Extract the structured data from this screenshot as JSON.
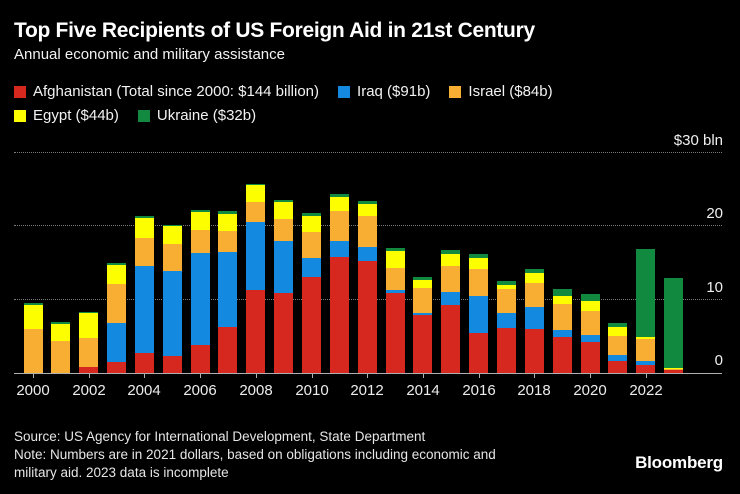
{
  "header": {
    "title": "Top Five Recipients of US Foreign Aid in 21st Century",
    "subtitle": "Annual economic and military assistance"
  },
  "legend": {
    "items": [
      {
        "key": "afghanistan",
        "label": "Afghanistan (Total since 2000: $144 billion)",
        "color": "#d6281e"
      },
      {
        "key": "iraq",
        "label": "Iraq ($91b)",
        "color": "#1389df"
      },
      {
        "key": "israel",
        "label": "Israel ($84b)",
        "color": "#f8ae33"
      },
      {
        "key": "egypt",
        "label": "Egypt ($44b)",
        "color": "#fdfe00"
      },
      {
        "key": "ukraine",
        "label": "Ukraine ($32b)",
        "color": "#118a3f"
      }
    ]
  },
  "chart_data": {
    "type": "bar",
    "stacked": true,
    "title": "Top Five Recipients of US Foreign Aid in 21st Century",
    "subtitle": "Annual economic and military assistance",
    "x": [
      2000,
      2001,
      2002,
      2003,
      2004,
      2005,
      2006,
      2007,
      2008,
      2009,
      2010,
      2011,
      2012,
      2013,
      2014,
      2015,
      2016,
      2017,
      2018,
      2019,
      2020,
      2021,
      2022,
      2023
    ],
    "series": [
      {
        "name": "Afghanistan",
        "key": "afghanistan",
        "color": "#d6281e",
        "values": [
          0,
          0,
          0.8,
          1.45,
          2.7,
          2.25,
          3.8,
          6.3,
          11.3,
          10.9,
          13.1,
          15.8,
          15.2,
          10.9,
          7.9,
          9.3,
          5.5,
          6.1,
          6.0,
          4.9,
          4.2,
          1.7,
          1.1,
          0.35
        ]
      },
      {
        "name": "Iraq",
        "key": "iraq",
        "color": "#1389df",
        "values": [
          0,
          0,
          0,
          5.4,
          11.9,
          11.6,
          12.5,
          10.1,
          9.2,
          7.0,
          2.6,
          2.2,
          2.0,
          0.45,
          0.3,
          1.7,
          5.0,
          2.0,
          3.0,
          0.9,
          1.0,
          0.75,
          0.6,
          0
        ]
      },
      {
        "name": "Israel",
        "key": "israel",
        "color": "#f8ae33",
        "values": [
          6.0,
          4.4,
          3.9,
          5.3,
          3.7,
          3.7,
          3.1,
          2.9,
          2.8,
          3.0,
          3.5,
          4.0,
          4.1,
          3.0,
          3.3,
          3.6,
          3.6,
          3.3,
          3.2,
          3.6,
          3.3,
          2.6,
          2.9,
          0.2
        ]
      },
      {
        "name": "Egypt",
        "key": "egypt",
        "color": "#fdfe00",
        "values": [
          3.2,
          2.3,
          3.4,
          2.5,
          2.8,
          2.4,
          2.5,
          2.4,
          2.25,
          2.4,
          2.2,
          1.9,
          1.7,
          2.25,
          1.1,
          1.6,
          1.5,
          0.55,
          1.4,
          1.05,
          1.3,
          1.2,
          0.35,
          0.1
        ]
      },
      {
        "name": "Ukraine",
        "key": "ukraine",
        "color": "#118a3f",
        "values": [
          0.3,
          0.3,
          0.25,
          0.25,
          0.25,
          0.25,
          0.25,
          0.3,
          0.2,
          0.3,
          0.35,
          0.45,
          0.45,
          0.45,
          0.45,
          0.55,
          0.6,
          0.6,
          0.6,
          1.0,
          1.0,
          0.55,
          11.9,
          12.3
        ]
      }
    ],
    "xtick_labels": [
      "2000",
      "2002",
      "2004",
      "2006",
      "2008",
      "2010",
      "2012",
      "2014",
      "2016",
      "2018",
      "2020",
      "2022"
    ],
    "ytick_labels": [
      {
        "value": 30,
        "label": "$30 bln"
      },
      {
        "value": 20,
        "label": "20"
      },
      {
        "value": 10,
        "label": "10"
      },
      {
        "value": 0,
        "label": "0"
      }
    ],
    "ylim": [
      0,
      30
    ],
    "grid": "horizontal-dotted",
    "legend_position": "top"
  },
  "footer": {
    "source": "Source: US Agency for International Development, State Department",
    "note_lines": [
      "Note: Numbers are in 2021 dollars, based on obligations including economic and",
      "military aid. 2023 data is incomplete"
    ],
    "brand": "Bloomberg"
  }
}
